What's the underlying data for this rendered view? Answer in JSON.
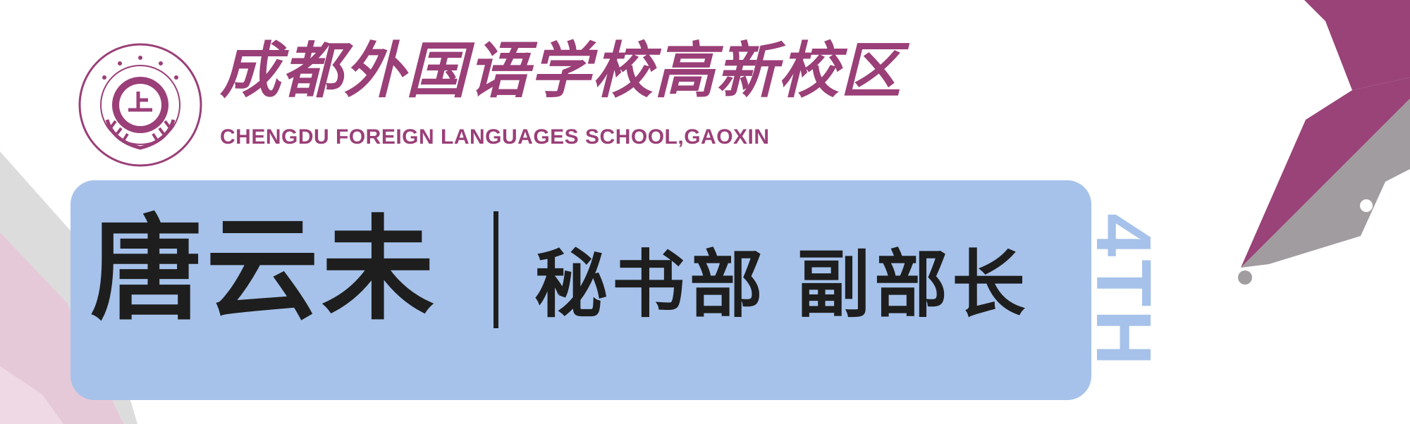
{
  "header": {
    "school_name_cn": "成都外国语学校高新校区",
    "school_name_en": "CHENGDU FOREIGN LANGUAGES SCHOOL,GAOXIN"
  },
  "seal": {
    "emblem_icon": "laurel-emblem-icon"
  },
  "banner": {
    "name": "唐云未",
    "role": "秘书部 副部长",
    "edition": "4TH"
  },
  "colors": {
    "brand_purple": "#9a3f78",
    "banner_blue": "#a6c2ea",
    "text_dark": "#1e1e1e",
    "nib_gray": "#a19ca0",
    "light_pink": "#e6c9d8"
  }
}
